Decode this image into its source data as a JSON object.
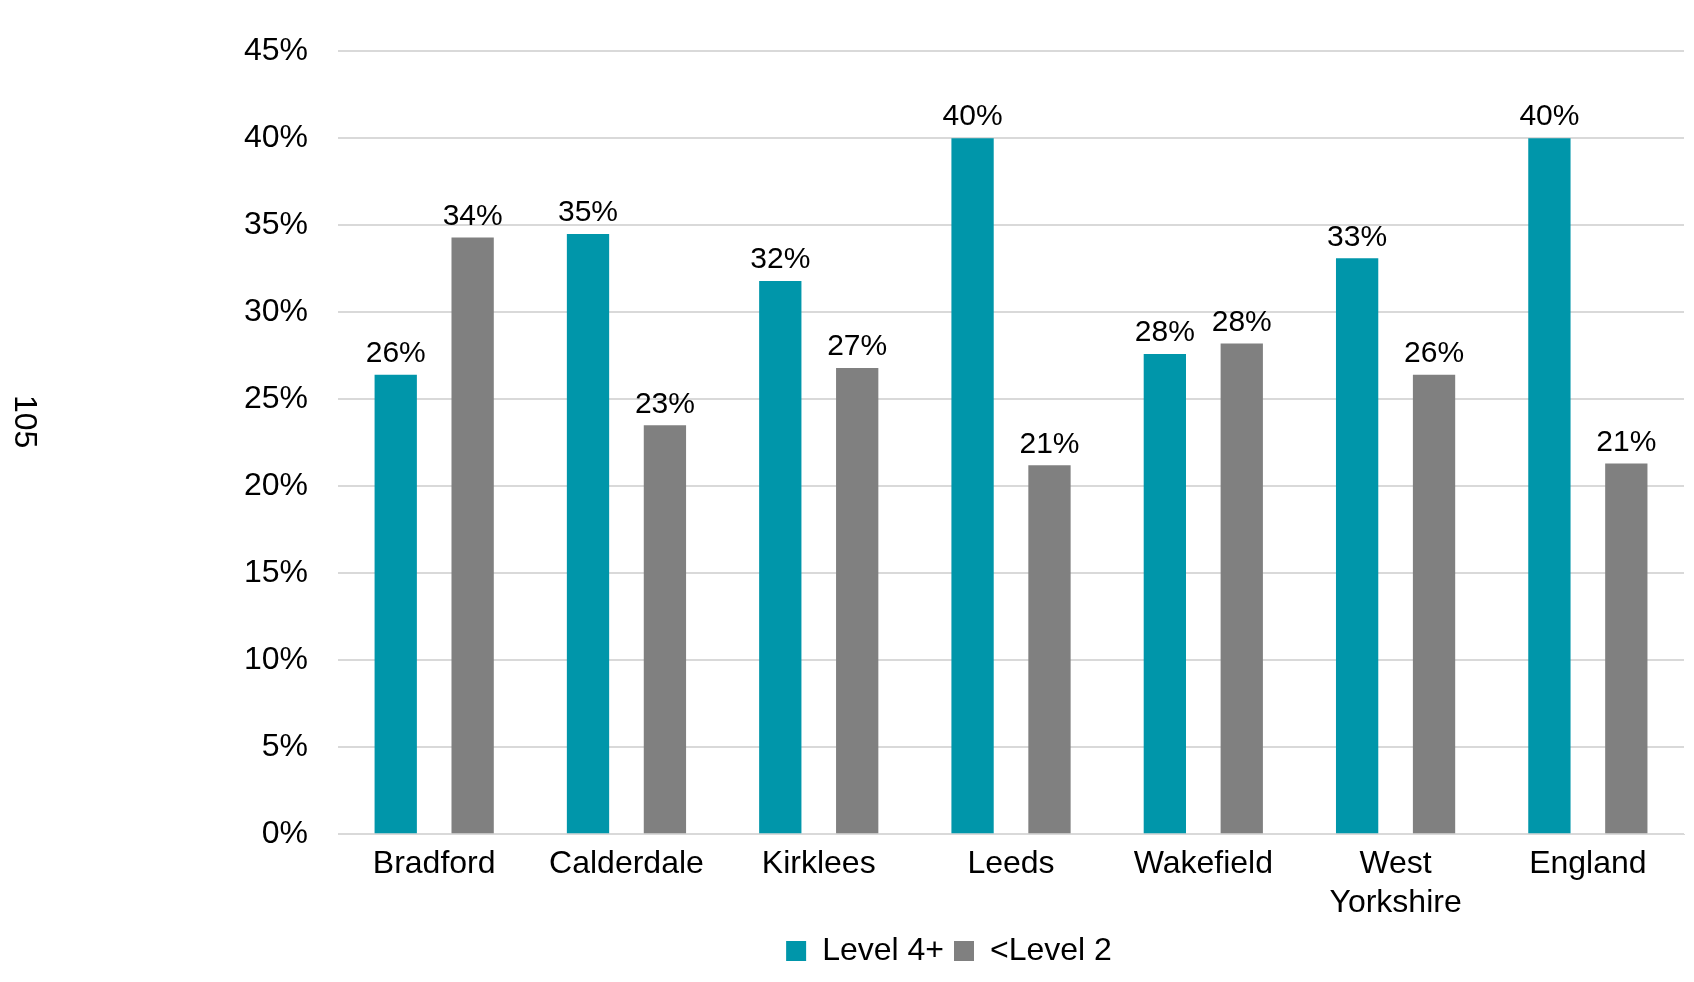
{
  "chart_data": {
    "type": "bar",
    "categories": [
      "Bradford",
      "Calderdale",
      "Kirklees",
      "Leeds",
      "Wakefield",
      "West Yorkshire",
      "England"
    ],
    "series": [
      {
        "name": "Level 4+",
        "color": "#0096aa",
        "values": [
          26.4,
          34.5,
          31.8,
          40.0,
          27.6,
          33.1,
          40.0
        ],
        "value_labels": [
          "26%",
          "35%",
          "32%",
          "40%",
          "28%",
          "33%",
          "40%"
        ]
      },
      {
        "name": "<Level 2",
        "color": "#808080",
        "values": [
          34.3,
          23.5,
          26.8,
          21.2,
          28.2,
          26.4,
          21.3
        ],
        "value_labels": [
          "34%",
          "23%",
          "27%",
          "21%",
          "28%",
          "26%",
          "21%"
        ]
      }
    ],
    "ylim": [
      0,
      45
    ],
    "yticks": [
      {
        "value": 0,
        "label": "0%"
      },
      {
        "value": 5,
        "label": "5%"
      },
      {
        "value": 10,
        "label": "10%"
      },
      {
        "value": 15,
        "label": "15%"
      },
      {
        "value": 20,
        "label": "20%"
      },
      {
        "value": 25,
        "label": "25%"
      },
      {
        "value": 30,
        "label": "30%"
      },
      {
        "value": 35,
        "label": "35%"
      },
      {
        "value": 40,
        "label": "40%"
      },
      {
        "value": 45,
        "label": "45%"
      }
    ],
    "grid": "y",
    "legend": "bottom",
    "annotations": [
      "105"
    ]
  }
}
